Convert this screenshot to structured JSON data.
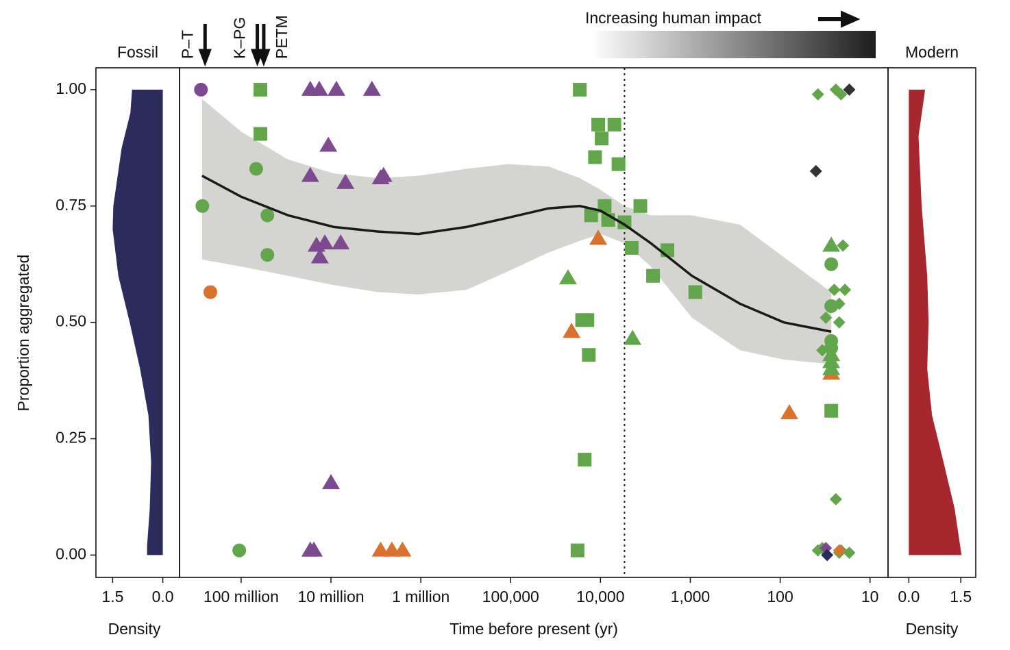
{
  "chart_data": [
    {
      "type": "density",
      "title": "Fossil",
      "xlabel": "Density",
      "ylabel": "Proportion aggregated",
      "xlim": [
        2.0,
        -0.5
      ],
      "xticks": [
        1.5,
        {
          "value": 0,
          "label": "0.0"
        }
      ],
      "ylim": [
        -0.048,
        1.047
      ],
      "yticks": [
        {
          "value": 0,
          "label": "0.00"
        },
        0.25,
        {
          "value": 0.5,
          "label": "0.50"
        },
        0.75,
        {
          "value": 1,
          "label": "1.00"
        }
      ],
      "color": "#2b2c5c",
      "y": [
        1.0,
        0.95,
        0.875,
        0.75,
        0.7,
        0.6,
        0.5,
        0.4,
        0.3,
        0.2,
        0.1,
        0.02,
        0.0
      ],
      "values": [
        0.92,
        0.97,
        1.23,
        1.48,
        1.5,
        1.33,
        0.99,
        0.68,
        0.43,
        0.35,
        0.39,
        0.47,
        0.47
      ]
    },
    {
      "type": "scatter",
      "xlabel": "Time before present (yr)",
      "xscale": "log",
      "xlim": [
        485000000,
        6.3
      ],
      "xticks": [
        {
          "value": 100000000,
          "label": "100 million"
        },
        {
          "value": 10000000,
          "label": "10 million"
        },
        {
          "value": 1000000,
          "label": "1 million"
        },
        {
          "value": 100000,
          "label": "100,000"
        },
        {
          "value": 10000,
          "label": "10,000"
        },
        {
          "value": 1000,
          "label": "1,000"
        },
        100,
        10
      ],
      "ylim": [
        -0.048,
        1.047
      ],
      "annotation": "Increasing human impact",
      "vline": 5400,
      "events": [
        {
          "label": "P–T",
          "x": 252000000
        },
        {
          "label": "K–PG",
          "x": 66000000
        },
        {
          "label": "PETM",
          "x": 56000000
        }
      ],
      "smooth": {
        "color": "#1a1a1a",
        "band_color": "#d4d4d0",
        "x": [
          272000000,
          100000000,
          30000000,
          9300000,
          2980000,
          1060000,
          310000,
          106000,
          38000,
          17000,
          10000,
          5400,
          2750,
          960,
          280,
          91,
          27
        ],
        "values": [
          0.815,
          0.77,
          0.73,
          0.705,
          0.695,
          0.69,
          0.705,
          0.725,
          0.745,
          0.75,
          0.74,
          0.71,
          0.67,
          0.6,
          0.54,
          0.5,
          0.48
        ],
        "upper": [
          0.98,
          0.91,
          0.85,
          0.82,
          0.81,
          0.815,
          0.83,
          0.84,
          0.835,
          0.81,
          0.785,
          0.75,
          0.73,
          0.73,
          0.71,
          0.64,
          0.565
        ],
        "lower": [
          0.635,
          0.62,
          0.6,
          0.58,
          0.565,
          0.56,
          0.57,
          0.61,
          0.65,
          0.675,
          0.69,
          0.67,
          0.62,
          0.51,
          0.44,
          0.42,
          0.41
        ]
      },
      "series": [
        {
          "color": "#7d4a92",
          "marker": "circle",
          "x": [
            280000000
          ],
          "values": [
            1.0
          ]
        },
        {
          "color": "#62a64c",
          "marker": "circle",
          "x": [
            270000000,
            68000000,
            51000000,
            51000000,
            105000000,
            27,
            27,
            27,
            27
          ],
          "values": [
            0.75,
            0.83,
            0.73,
            0.645,
            0.01,
            0.625,
            0.535,
            0.46,
            0.445
          ]
        },
        {
          "color": "#d9712f",
          "marker": "circle",
          "x": [
            220000000
          ],
          "values": [
            0.565
          ]
        },
        {
          "color": "#7d4a92",
          "marker": "triangle",
          "x": [
            17000000,
            13500000,
            8700000,
            3500000,
            10700000,
            17000000,
            6900000,
            2600000,
            2800000,
            14500000,
            11700000,
            7800000,
            13300000,
            10000000,
            17000000,
            15500000
          ],
          "values": [
            1.0,
            1.0,
            1.0,
            1.0,
            0.88,
            0.815,
            0.8,
            0.815,
            0.81,
            0.665,
            0.67,
            0.67,
            0.64,
            0.155,
            0.01,
            0.01
          ]
        },
        {
          "color": "#d9712f",
          "marker": "triangle",
          "x": [
            2800000,
            2100000,
            1600000,
            10600,
            21000,
            79,
            27
          ],
          "values": [
            0.01,
            0.01,
            0.01,
            0.68,
            0.48,
            0.305,
            0.39
          ]
        },
        {
          "color": "#62a64c",
          "marker": "triangle",
          "x": [
            23000,
            4400,
            27,
            27,
            27,
            27
          ],
          "values": [
            0.595,
            0.465,
            0.665,
            0.43,
            0.415,
            0.4
          ]
        },
        {
          "color": "#62a64c",
          "marker": "square",
          "x": [
            61000000,
            61000000,
            17000,
            10600,
            7000,
            9700,
            11500,
            6300,
            9000,
            12700,
            8200,
            5400,
            3600,
            4500,
            1800,
            2600,
            880,
            16000,
            14000,
            13500,
            15000,
            18000,
            27
          ],
          "values": [
            1.0,
            0.905,
            1.0,
            0.925,
            0.925,
            0.895,
            0.855,
            0.84,
            0.75,
            0.73,
            0.72,
            0.715,
            0.75,
            0.66,
            0.655,
            0.6,
            0.565,
            0.505,
            0.505,
            0.43,
            0.205,
            0.01,
            0.31
          ]
        },
        {
          "color": "#62a64c",
          "marker": "diamond",
          "x": [
            38,
            24,
            21,
            20,
            25,
            19,
            22,
            31,
            22,
            34,
            24,
            38,
            34,
            21,
            17,
            22
          ],
          "values": [
            0.99,
            1.0,
            0.99,
            0.665,
            0.57,
            0.57,
            0.54,
            0.51,
            0.5,
            0.44,
            0.12,
            0.01,
            0.015,
            0.01,
            0.005,
            0.005
          ]
        },
        {
          "color": "#333333",
          "marker": "diamond",
          "x": [
            17,
            40
          ],
          "values": [
            1.0,
            0.825
          ]
        },
        {
          "color": "#7d4a92",
          "marker": "diamond",
          "x": [
            31
          ],
          "values": [
            0.015
          ]
        },
        {
          "color": "#d9712f",
          "marker": "diamond",
          "x": [
            22
          ],
          "values": [
            0.01
          ]
        },
        {
          "color": "#2b2c5c",
          "marker": "diamond",
          "x": [
            30
          ],
          "values": [
            0.0
          ]
        }
      ]
    },
    {
      "type": "density",
      "title": "Modern",
      "xlabel": "Density",
      "xlim": [
        -0.6,
        1.93
      ],
      "xticks": [
        {
          "value": 0,
          "label": "0.0"
        },
        1.5
      ],
      "ylim": [
        -0.048,
        1.047
      ],
      "color": "#a8262e",
      "y": [
        1.0,
        0.9,
        0.75,
        0.6,
        0.5,
        0.4,
        0.3,
        0.2,
        0.1,
        0.0
      ],
      "values": [
        0.47,
        0.28,
        0.37,
        0.53,
        0.57,
        0.53,
        0.67,
        1.0,
        1.32,
        1.52
      ]
    }
  ]
}
